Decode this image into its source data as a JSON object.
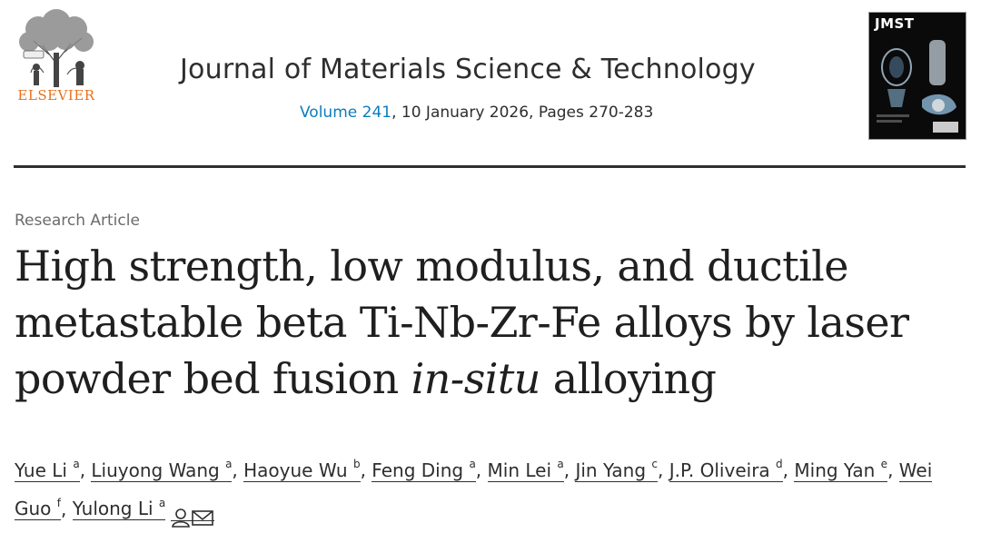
{
  "header": {
    "publisher": "ELSEVIER",
    "journal_title": "Journal of Materials Science & Technology",
    "volume_link": "Volume 241",
    "issue_rest": ", 10 January 2026, Pages 270-283",
    "cover_title": "JMST"
  },
  "article": {
    "type": "Research Article",
    "title_part1": "High strength, low modulus, and ductile metastable beta Ti-Nb-Zr-Fe alloys by laser powder bed fusion ",
    "title_italic": "in-situ",
    "title_part2": " alloying"
  },
  "authors": [
    {
      "name": "Yue Li",
      "aff": "a"
    },
    {
      "name": "Liuyong Wang",
      "aff": "a"
    },
    {
      "name": "Haoyue Wu",
      "aff": "b"
    },
    {
      "name": "Feng Ding",
      "aff": "a"
    },
    {
      "name": "Min Lei",
      "aff": "a"
    },
    {
      "name": "Jin Yang",
      "aff": "c"
    },
    {
      "name": "J.P. Oliveira",
      "aff": "d"
    },
    {
      "name": "Ming Yan",
      "aff": "e"
    },
    {
      "name": "Wei Guo",
      "aff": "f"
    },
    {
      "name": "Yulong Li",
      "aff": "a"
    }
  ],
  "colors": {
    "link": "#0c7dbb",
    "publisher": "#e9711c",
    "text": "#2e2e2e"
  },
  "icons": [
    "elsevier-tree-logo",
    "person-icon",
    "envelope-icon"
  ]
}
